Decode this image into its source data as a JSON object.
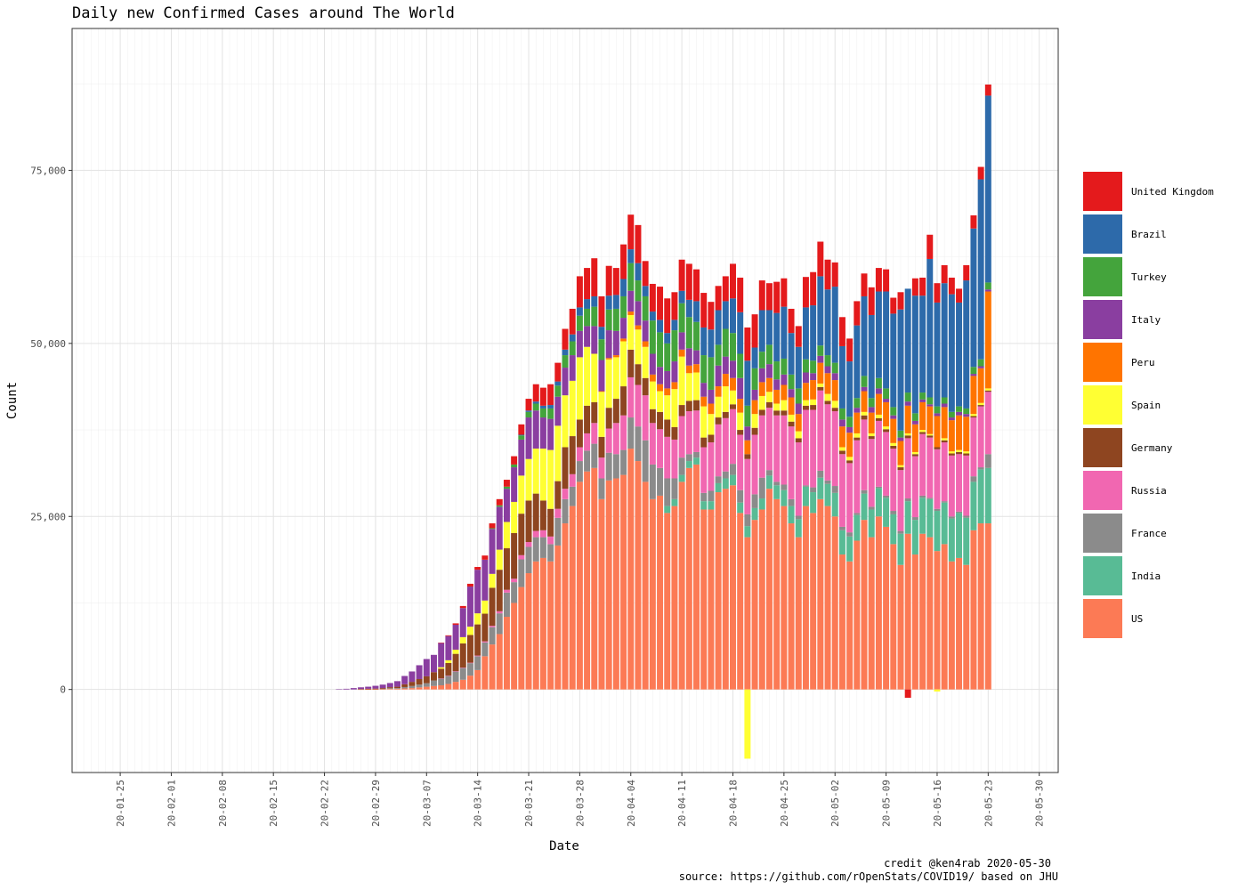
{
  "chart_data": {
    "type": "bar",
    "stacked": true,
    "title": "Daily new Confirmed Cases around The World",
    "xlabel": "Date",
    "ylabel": "Count",
    "ylim": [
      -12000,
      95500
    ],
    "yticks": [
      0,
      25000,
      50000,
      75000
    ],
    "ytick_labels": [
      "0",
      "25,000",
      "50,000",
      "75,000"
    ],
    "x_start": "2020-01-22",
    "x_end": "2020-05-30",
    "xticks": [
      "2020-01-25",
      "2020-02-01",
      "2020-02-08",
      "2020-02-15",
      "2020-02-22",
      "2020-02-29",
      "2020-03-07",
      "2020-03-14",
      "2020-03-21",
      "2020-03-28",
      "2020-04-04",
      "2020-04-11",
      "2020-04-18",
      "2020-04-25",
      "2020-05-02",
      "2020-05-09",
      "2020-05-16",
      "2020-05-23",
      "2020-05-30"
    ],
    "xtick_labels": [
      "20-01-25",
      "20-02-01",
      "20-02-08",
      "20-02-15",
      "20-02-22",
      "20-02-29",
      "20-03-07",
      "20-03-14",
      "20-03-21",
      "20-03-28",
      "20-04-04",
      "20-04-11",
      "20-04-18",
      "20-04-25",
      "20-05-02",
      "20-05-09",
      "20-05-16",
      "20-05-23",
      "20-05-30"
    ],
    "grid": true,
    "legend_position": "right",
    "series_start": "2020-02-20",
    "series": [
      {
        "name": "US",
        "color": "#FC7A55",
        "values": [
          0,
          0,
          0,
          0,
          0,
          0,
          0,
          10,
          20,
          30,
          50,
          80,
          100,
          150,
          200,
          300,
          400,
          500,
          600,
          800,
          1100,
          1400,
          2000,
          2800,
          4800,
          6500,
          8000,
          10500,
          12500,
          14800,
          16800,
          18500,
          19000,
          18500,
          20800,
          24000,
          26500,
          30000,
          31500,
          32000,
          27500,
          30200,
          30500,
          31000,
          34800,
          33000,
          30000,
          27500,
          28000,
          25500,
          26500,
          30000,
          32000,
          32500,
          26000,
          26000,
          28500,
          29000,
          29500,
          25500,
          22000,
          24500,
          26000,
          29000,
          27500,
          26500,
          24000,
          22000,
          26500,
          25500,
          27500,
          26500,
          25000,
          19500,
          18500,
          21500,
          24500,
          22000,
          25000,
          23500,
          21000,
          18000,
          22500,
          19500,
          22500,
          22000,
          20000,
          21000,
          18500,
          19000,
          18000,
          23000,
          24000,
          24000
        ]
      },
      {
        "name": "India",
        "color": "#58BB95",
        "values": [
          0,
          0,
          0,
          0,
          0,
          0,
          0,
          0,
          0,
          0,
          0,
          0,
          0,
          0,
          0,
          0,
          0,
          0,
          0,
          0,
          0,
          0,
          0,
          0,
          0,
          0,
          0,
          0,
          0,
          0,
          0,
          0,
          0,
          0,
          0,
          0,
          0,
          0,
          0,
          0,
          0,
          0,
          0,
          0,
          0,
          0,
          0,
          0,
          0,
          1000,
          1000,
          1000,
          1000,
          1000,
          1200,
          1200,
          1300,
          1500,
          1500,
          1500,
          1600,
          1700,
          1600,
          1900,
          2000,
          2300,
          2500,
          2600,
          2800,
          3000,
          3100,
          3200,
          3400,
          3500,
          3600,
          3700,
          3800,
          4000,
          4100,
          4200,
          4300,
          4500,
          4700,
          5000,
          5200,
          5500,
          5800,
          6000,
          6200,
          6500,
          6800,
          7000,
          7800,
          8000
        ]
      },
      {
        "name": "France",
        "color": "#8B8B8B",
        "values": [
          0,
          0,
          0,
          0,
          0,
          0,
          0,
          0,
          0,
          0,
          0,
          100,
          100,
          200,
          300,
          400,
          500,
          800,
          1000,
          1200,
          1500,
          1700,
          1800,
          2000,
          2000,
          2500,
          3000,
          3500,
          3000,
          4000,
          3800,
          3500,
          3000,
          2500,
          4000,
          3500,
          2800,
          3000,
          3000,
          3500,
          3000,
          4000,
          3500,
          3600,
          4500,
          5000,
          6000,
          5000,
          4000,
          4000,
          3000,
          2500,
          1000,
          800,
          1200,
          1500,
          1000,
          1000,
          1600,
          1800,
          1700,
          2000,
          3000,
          800,
          500,
          800,
          1000,
          500,
          200,
          700,
          1000,
          500,
          1000,
          500,
          600,
          300,
          500,
          400,
          200,
          300,
          500,
          400,
          400,
          400,
          300,
          200,
          300,
          200,
          300,
          200,
          300,
          800,
          300,
          2000
        ]
      },
      {
        "name": "Russia",
        "color": "#F167B1",
        "values": [
          0,
          0,
          0,
          0,
          0,
          0,
          0,
          0,
          0,
          0,
          0,
          0,
          0,
          0,
          0,
          0,
          0,
          0,
          10,
          20,
          50,
          60,
          70,
          100,
          150,
          200,
          300,
          400,
          500,
          600,
          700,
          900,
          1000,
          1100,
          1300,
          1500,
          1800,
          2000,
          2500,
          3000,
          3000,
          3500,
          4500,
          5000,
          5800,
          6000,
          6500,
          6000,
          5600,
          6000,
          5600,
          6000,
          6200,
          6000,
          6600,
          7000,
          7500,
          7700,
          7900,
          8000,
          8000,
          8600,
          9000,
          9000,
          9600,
          10000,
          10500,
          10600,
          10900,
          11200,
          11600,
          11000,
          10800,
          10500,
          10000,
          10500,
          10200,
          9800,
          9500,
          9200,
          9000,
          8800,
          8700,
          8800,
          8900,
          8700,
          8600,
          8500,
          8800,
          8300,
          8700,
          8500,
          8800,
          9000
        ]
      },
      {
        "name": "Germany",
        "color": "#8E4520",
        "values": [
          0,
          0,
          0,
          0,
          0,
          0,
          0,
          50,
          80,
          100,
          150,
          150,
          200,
          400,
          600,
          800,
          1000,
          1200,
          1400,
          1800,
          2500,
          3500,
          4000,
          4500,
          4000,
          5500,
          6000,
          6000,
          6600,
          6000,
          6000,
          5400,
          4300,
          4000,
          4000,
          6000,
          5500,
          4000,
          4000,
          3000,
          3000,
          3000,
          3500,
          4200,
          4000,
          3000,
          2500,
          2000,
          2500,
          2500,
          1800,
          1600,
          1500,
          1500,
          1400,
          1100,
          1000,
          900,
          700,
          700,
          700,
          1000,
          800,
          800,
          700,
          700,
          700,
          600,
          600,
          700,
          500,
          500,
          500,
          500,
          400,
          400,
          600,
          400,
          400,
          400,
          400,
          400,
          400,
          300,
          300,
          300,
          300,
          300,
          300,
          300,
          300,
          200,
          200,
          200
        ]
      },
      {
        "name": "Spain",
        "color": "#FFFF33",
        "values": [
          0,
          0,
          0,
          0,
          0,
          0,
          0,
          0,
          0,
          0,
          0,
          0,
          0,
          0,
          0,
          0,
          0,
          0,
          200,
          400,
          600,
          900,
          1200,
          1600,
          1900,
          2000,
          2900,
          3800,
          4500,
          5500,
          6000,
          6500,
          7500,
          8500,
          8000,
          7500,
          8000,
          9000,
          8500,
          7000,
          6500,
          7000,
          6000,
          6500,
          5000,
          5000,
          4500,
          4000,
          3000,
          3500,
          5500,
          7000,
          4000,
          4000,
          4500,
          3000,
          3000,
          3700,
          2000,
          2500,
          -10000,
          2000,
          2000,
          1500,
          1000,
          1500,
          1000,
          1000,
          800,
          800,
          500,
          1000,
          1000,
          500,
          500,
          600,
          500,
          400,
          500,
          400,
          400,
          300,
          300,
          300,
          300,
          200,
          -300,
          300,
          300,
          300,
          300,
          300,
          300,
          300
        ]
      },
      {
        "name": "Peru",
        "color": "#FF7400",
        "values": [
          0,
          0,
          0,
          0,
          0,
          0,
          0,
          0,
          0,
          0,
          0,
          0,
          0,
          0,
          0,
          0,
          0,
          0,
          0,
          0,
          0,
          0,
          0,
          0,
          0,
          0,
          0,
          0,
          0,
          0,
          0,
          0,
          0,
          0,
          0,
          0,
          0,
          0,
          0,
          0,
          100,
          200,
          300,
          400,
          500,
          600,
          800,
          1000,
          1000,
          1000,
          1000,
          1000,
          1100,
          1200,
          1400,
          1500,
          1500,
          1800,
          1800,
          2000,
          2000,
          2000,
          2000,
          2000,
          2000,
          2200,
          2500,
          2500,
          2500,
          2800,
          3000,
          3000,
          3000,
          3000,
          3500,
          3000,
          3000,
          3000,
          3000,
          3500,
          3500,
          3500,
          4000,
          4000,
          4000,
          4000,
          4500,
          4500,
          4500,
          5000,
          5000,
          5500,
          5000,
          14000
        ]
      },
      {
        "name": "Italy",
        "color": "#8A3EA0",
        "values": [
          0,
          0,
          0,
          0,
          50,
          100,
          200,
          250,
          300,
          400,
          500,
          600,
          800,
          1200,
          1500,
          2000,
          2500,
          2500,
          3500,
          3500,
          3600,
          4200,
          5800,
          6300,
          5900,
          6500,
          6200,
          4800,
          5000,
          5200,
          6000,
          5500,
          4500,
          4500,
          4200,
          4000,
          3700,
          3800,
          3000,
          4000,
          4500,
          4000,
          3500,
          3000,
          3000,
          3500,
          3000,
          3000,
          2500,
          2500,
          3000,
          2500,
          2500,
          2000,
          2000,
          2000,
          3000,
          2500,
          2500,
          3000,
          2000,
          1500,
          2000,
          2000,
          1500,
          1500,
          1200,
          1500,
          1500,
          1000,
          1000,
          1000,
          1000,
          1000,
          800,
          700,
          600,
          800,
          800,
          500,
          500,
          500,
          600,
          500,
          400,
          300,
          400,
          500,
          400,
          500,
          400,
          300,
          300,
          300
        ]
      },
      {
        "name": "Turkey",
        "color": "#44A43C",
        "values": [
          0,
          0,
          0,
          0,
          0,
          0,
          0,
          0,
          0,
          0,
          0,
          0,
          0,
          0,
          0,
          0,
          0,
          0,
          0,
          0,
          0,
          0,
          0,
          0,
          0,
          100,
          200,
          300,
          400,
          600,
          800,
          1000,
          1300,
          1500,
          1600,
          1800,
          2000,
          2200,
          2500,
          2800,
          3000,
          3000,
          3200,
          3100,
          4000,
          3000,
          3500,
          4800,
          5000,
          4000,
          4500,
          4200,
          4500,
          4100,
          4000,
          4700,
          3000,
          4000,
          4000,
          3500,
          3000,
          3100,
          2400,
          2800,
          2600,
          2300,
          2100,
          2200,
          1900,
          1800,
          1500,
          1600,
          1500,
          1600,
          1500,
          1400,
          1600,
          1300,
          1500,
          1500,
          1200,
          1000,
          1300,
          1100,
          1000,
          1000,
          1000,
          900,
          800,
          800,
          800,
          1000,
          1000,
          1000
        ]
      },
      {
        "name": "Brazil",
        "color": "#2D6AAA",
        "values": [
          0,
          0,
          0,
          0,
          0,
          0,
          0,
          0,
          0,
          0,
          0,
          0,
          0,
          0,
          0,
          0,
          0,
          0,
          0,
          0,
          0,
          0,
          0,
          0,
          0,
          0,
          0,
          0,
          0,
          100,
          200,
          300,
          400,
          500,
          600,
          800,
          1000,
          1200,
          1400,
          1500,
          1800,
          2000,
          2000,
          2500,
          2000,
          2500,
          1500,
          1300,
          1800,
          1500,
          1500,
          1800,
          2500,
          3000,
          4000,
          4000,
          5000,
          4000,
          5000,
          6000,
          6500,
          3000,
          6000,
          5000,
          7000,
          7500,
          6000,
          6000,
          7500,
          8000,
          10000,
          9500,
          11000,
          9000,
          8000,
          10500,
          11500,
          12000,
          12500,
          14000,
          13500,
          17500,
          15000,
          17000,
          14000,
          20000,
          15000,
          16500,
          17000,
          15000,
          18500,
          20000,
          26000,
          27000
        ]
      },
      {
        "name": "United Kingdom",
        "color": "#E41A1C",
        "values": [
          0,
          0,
          0,
          0,
          0,
          0,
          0,
          0,
          0,
          0,
          0,
          0,
          0,
          0,
          0,
          0,
          0,
          0,
          50,
          100,
          200,
          300,
          400,
          400,
          600,
          700,
          900,
          1000,
          1200,
          1500,
          1700,
          2500,
          2600,
          3000,
          2700,
          3000,
          3700,
          4500,
          4500,
          5500,
          4400,
          4300,
          3900,
          5000,
          5000,
          5500,
          3600,
          4000,
          4800,
          5000,
          4000,
          4500,
          5200,
          4600,
          5000,
          4000,
          3500,
          3600,
          5000,
          5000,
          4800,
          4800,
          4300,
          3900,
          4500,
          4100,
          3500,
          3000,
          4400,
          4800,
          5000,
          4300,
          3500,
          4200,
          3300,
          3500,
          3300,
          4000,
          3400,
          3200,
          2300,
          2500,
          -1200,
          2500,
          2600,
          3500,
          2800,
          2600,
          2400,
          2000,
          2200,
          1900,
          1800,
          1600
        ]
      }
    ]
  },
  "caption": {
    "credit": "credit @ken4rab 2020-05-30",
    "source": "source: https://github.com/rOpenStats/COVID19/ based on JHU"
  }
}
